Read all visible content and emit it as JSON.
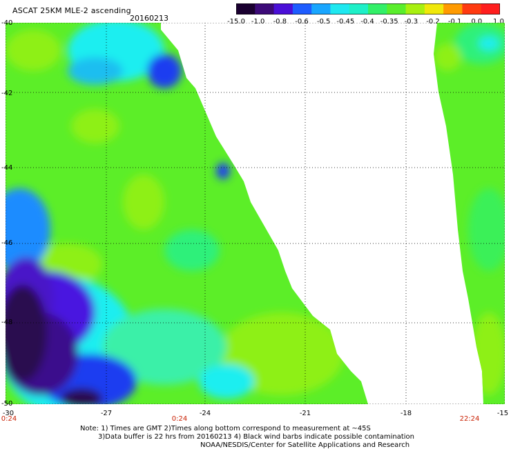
{
  "header": {
    "title": "ASCAT 25KM MLE-2 ascending",
    "date": "20160213"
  },
  "colorbar": {
    "labels": [
      "-15.0",
      "-1.0",
      "-0.8",
      "-0.6",
      "-0.5",
      "-0.45",
      "-0.4",
      "-0.35",
      "-0.3",
      "-0.2",
      "-0.1",
      "0.0",
      "1.0"
    ],
    "colors": [
      "#1a0030",
      "#3c0a78",
      "#4a0fd8",
      "#1e5cff",
      "#19a6ff",
      "#1ee8f0",
      "#1ef0c8",
      "#32f068",
      "#5aee2c",
      "#a8f010",
      "#f0e80a",
      "#ff9a00",
      "#ff3a10",
      "#ff1e1e"
    ]
  },
  "axes": {
    "lat_labels": [
      "-40",
      "-42",
      "-44",
      "-46",
      "-48",
      "-50"
    ],
    "lon_labels": [
      "-30",
      "-27",
      "-24",
      "-21",
      "-18",
      "-15"
    ],
    "time_labels": [
      "0:24",
      "0:24",
      "22:24"
    ]
  },
  "notes": {
    "line1": "Note: 1) Times are GMT 2)Times along bottom correspond to measurement at ~45S",
    "line2": "3)Data buffer is 22 hrs from 20160213 4) Black wind barbs indicate possible contamination",
    "line3": "NOAA/NESDIS/Center for Satellite Applications and Research"
  },
  "palette": {
    "green": "#5af02a",
    "lime": "#8cf014",
    "cyan": "#1eeef0",
    "blue": "#1e3cf0",
    "navy": "#4a12c8",
    "purple": "#2a0850"
  }
}
